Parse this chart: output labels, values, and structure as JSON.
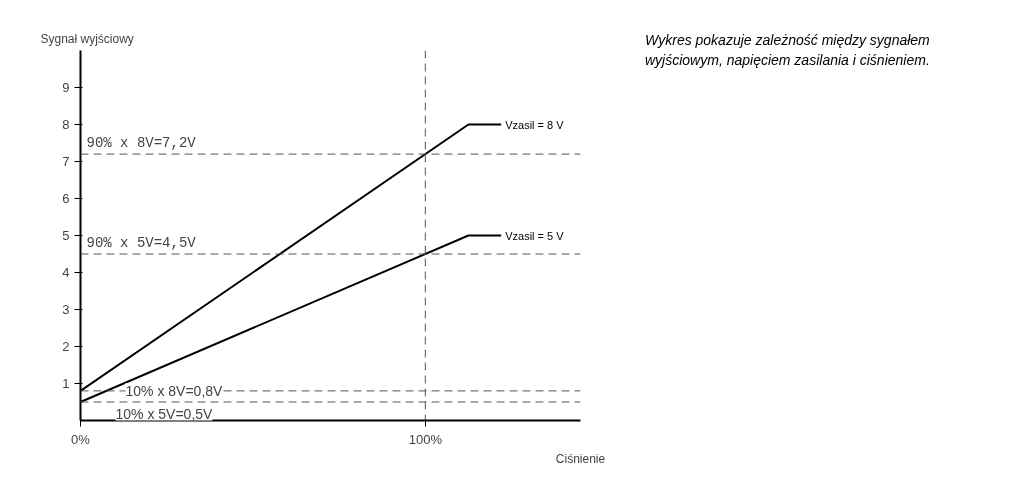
{
  "chart_data": {
    "type": "line",
    "ylabel": "Sygnał wyjściowy",
    "xlabel": "Ciśnienie",
    "x": [
      0,
      112.5,
      122
    ],
    "series": [
      {
        "name": "Vzasil = 8 V",
        "color": "#000000",
        "values": [
          0.8,
          8,
          8
        ]
      },
      {
        "name": "Vzasil = 5 V",
        "color": "#000000",
        "values": [
          0.5,
          5,
          5
        ]
      }
    ],
    "xlim": [
      0,
      145
    ],
    "xticks": [
      {
        "value": 0,
        "label": "0%"
      },
      {
        "value": 100,
        "label": "100%"
      }
    ],
    "ylim": [
      0,
      10
    ],
    "yticks": [
      1,
      2,
      3,
      4,
      5,
      6,
      7,
      8,
      9
    ],
    "ref_lines": [
      {
        "axis": "y",
        "value": 7.2,
        "label": "90% x 8V=7,2V",
        "line_style": "dashed"
      },
      {
        "axis": "y",
        "value": 4.5,
        "label": "90% x 5V=4,5V",
        "line_style": "dashed"
      },
      {
        "axis": "y",
        "value": 0.8,
        "label": "10% x 8V=0,8V",
        "line_style": "dashed"
      },
      {
        "axis": "y",
        "value": 0.5,
        "label": "10% x 5V=0,5V",
        "line_style": "dashed"
      },
      {
        "axis": "x",
        "value": 100,
        "line_style": "dashed"
      }
    ],
    "annotations": [
      "Wykres pokazuje zależność między sygnałem wyjściowym, napięciem zasilania i ciśnieniem."
    ],
    "grid": false,
    "marker": "none",
    "line_style": "solid"
  }
}
